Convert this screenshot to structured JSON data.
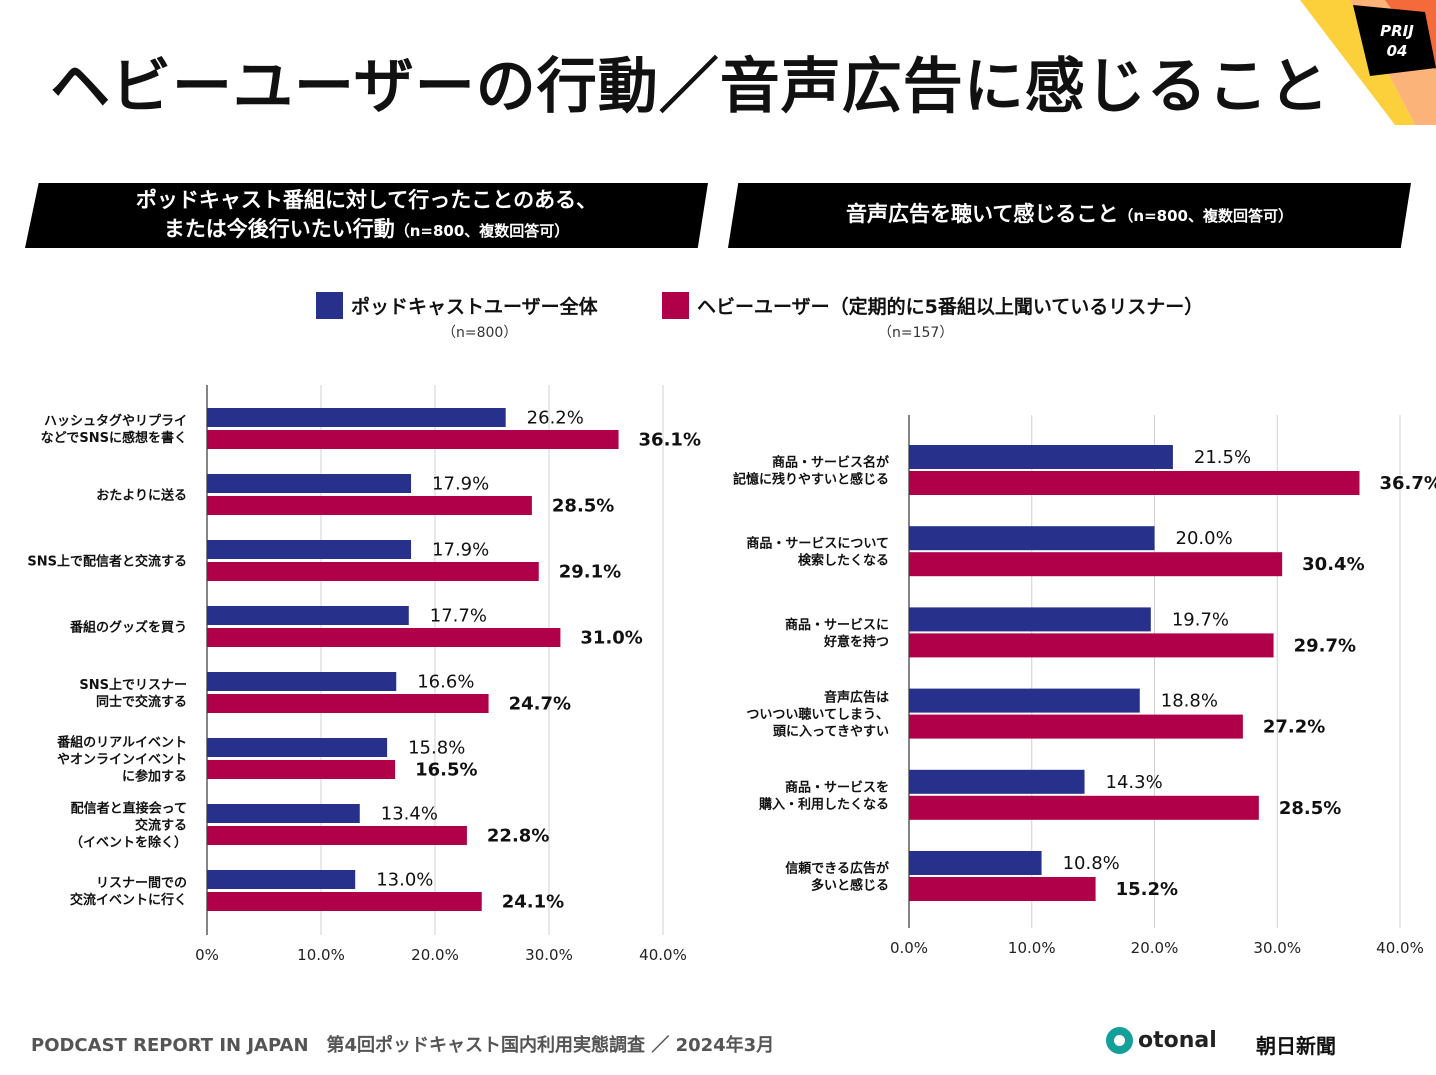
{
  "title": "ヘビーユーザーの行動／音声広告に感じること",
  "badge": {
    "line1": "PRIJ",
    "line2": "04"
  },
  "banner_left": {
    "line1": "ポッドキャスト番組に対して行ったことのある、",
    "line2": "または今後行いたい行動",
    "note": "（n=800、複数回答可）"
  },
  "banner_right": {
    "line1": "音声広告を聴いて感じること",
    "note": "（n=800、複数回答可）"
  },
  "legend": [
    {
      "name": "ポッドキャストユーザー全体",
      "n": "（n=800）",
      "color": "#27318b"
    },
    {
      "name": "ヘビーユーザー（定期的に5番組以上聞いているリスナー）",
      "n": "（n=157）",
      "color": "#b0004a"
    }
  ],
  "chart_data": [
    {
      "type": "bar",
      "orientation": "horizontal",
      "xlim": [
        0,
        40
      ],
      "ticks": [
        "0%",
        "10.0%",
        "20.0%",
        "30.0%",
        "40.0%"
      ],
      "categories": [
        "ハッシュタグやリプライ\nなどでSNSに感想を書く",
        "おたよりに送る",
        "SNS上で配信者と交流する",
        "番組のグッズを買う",
        "SNS上でリスナー\n同士で交流する",
        "番組のリアルイベント\nやオンラインイベント\nに参加する",
        "配信者と直接会って\n交流する\n（イベントを除く）",
        "リスナー間での\n交流イベントに行く"
      ],
      "series": [
        {
          "name": "ポッドキャストユーザー全体",
          "values": [
            26.2,
            17.9,
            17.9,
            17.7,
            16.6,
            15.8,
            13.4,
            13.0
          ]
        },
        {
          "name": "ヘビーユーザー",
          "values": [
            36.1,
            28.5,
            29.1,
            31.0,
            24.7,
            16.5,
            22.8,
            24.1
          ]
        }
      ]
    },
    {
      "type": "bar",
      "orientation": "horizontal",
      "xlim": [
        0,
        40
      ],
      "ticks": [
        "0.0%",
        "10.0%",
        "20.0%",
        "30.0%",
        "40.0%"
      ],
      "categories": [
        "商品・サービス名が\n記憶に残りやすいと感じる",
        "商品・サービスについて\n検索したくなる",
        "商品・サービスに\n好意を持つ",
        "音声広告は\nついつい聴いてしまう、\n頭に入ってきやすい",
        "商品・サービスを\n購入・利用したくなる",
        "信頼できる広告が\n多いと感じる"
      ],
      "series": [
        {
          "name": "ポッドキャストユーザー全体",
          "values": [
            21.5,
            20.0,
            19.7,
            18.8,
            14.3,
            10.8
          ]
        },
        {
          "name": "ヘビーユーザー",
          "values": [
            36.7,
            30.4,
            29.7,
            27.2,
            28.5,
            15.2
          ]
        }
      ]
    }
  ],
  "footer": "PODCAST REPORT IN JAPAN　第4回ポッドキャスト国内利用実態調査 ／ 2024年3月",
  "logos": {
    "otonal": "otonal",
    "asahi": "朝日新聞"
  }
}
